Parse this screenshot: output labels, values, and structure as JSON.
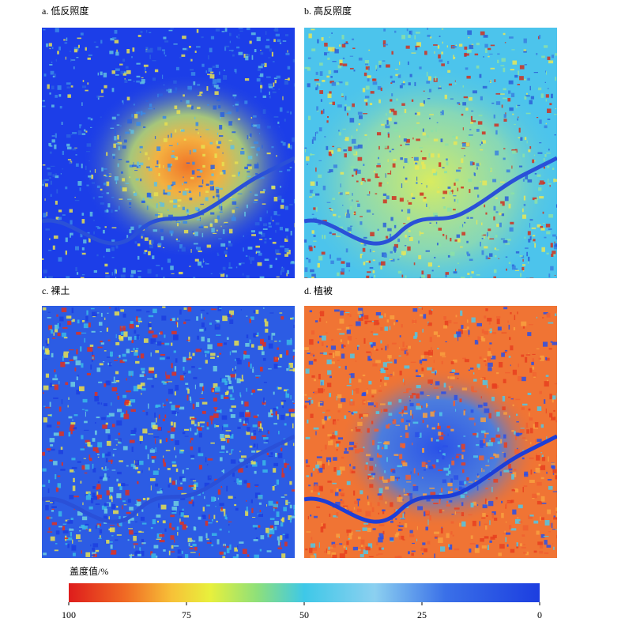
{
  "panels": [
    {
      "label": "a. 低反照度"
    },
    {
      "label": "b. 高反照度"
    },
    {
      "label": "c. 裸土"
    },
    {
      "label": "d. 植被"
    }
  ],
  "colorbar": {
    "label": "盖度值/%",
    "ticks": [
      100,
      75,
      50,
      25,
      0
    ]
  }
}
